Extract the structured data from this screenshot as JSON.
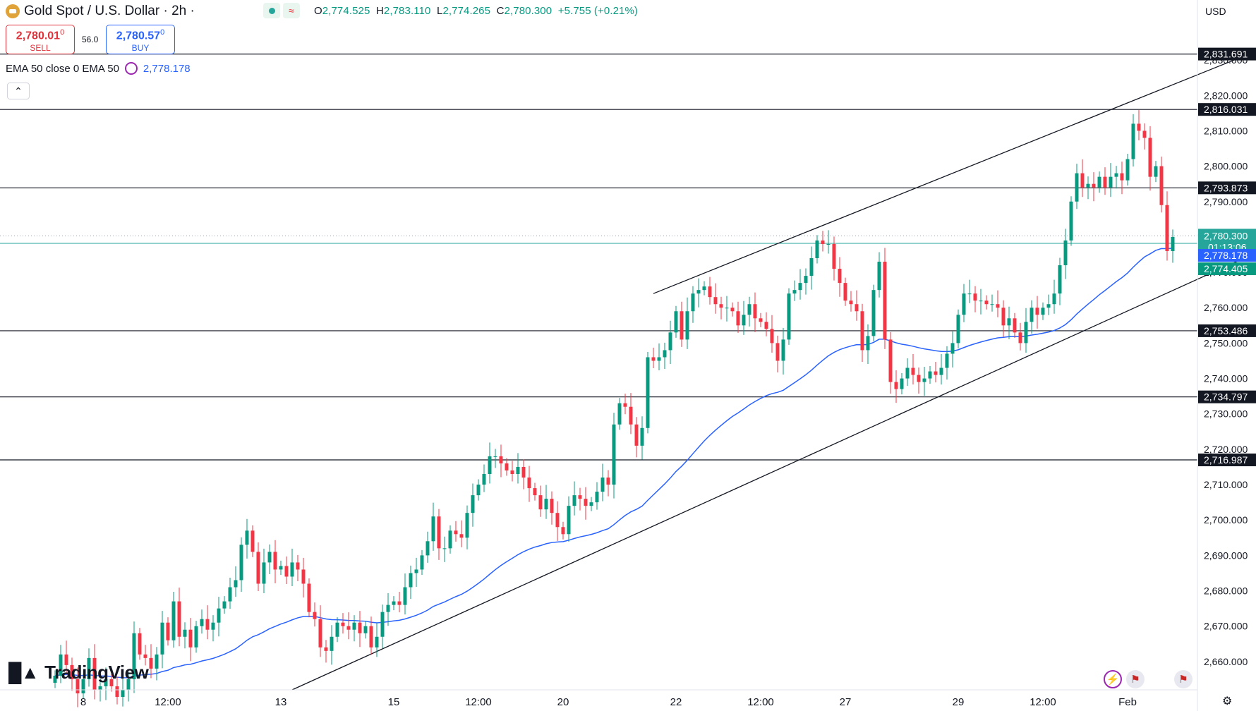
{
  "header": {
    "title": "Gold Spot / U.S. Dollar",
    "sep": "·",
    "interval": "2h",
    "dot": "·",
    "wave_icon": "≈",
    "ohlc": {
      "o_label": "O",
      "o": "2,774.525",
      "h_label": "H",
      "h": "2,783.110",
      "l_label": "L",
      "l": "2,774.265",
      "c_label": "C",
      "c": "2,780.300",
      "change": "+5.755 (+0.21%)"
    }
  },
  "trade": {
    "sell_price": "2,780.01",
    "sell_price_sup": "0",
    "sell_label": "SELL",
    "buy_price": "2,780.57",
    "buy_price_sup": "0",
    "buy_label": "BUY",
    "spread": "56.0"
  },
  "indicator": {
    "label": "EMA 50 close 0 EMA 50",
    "value": "2,778.178"
  },
  "currency": "USD",
  "branding": "TradingView",
  "colors": {
    "up": "#089981",
    "down": "#f23645",
    "ema": "#2962ff",
    "level": "#131722",
    "last": "#26a69a"
  },
  "chart_data": {
    "type": "candlestick",
    "symbol": "Gold Spot / U.S. Dollar",
    "interval": "2h",
    "ylim": [
      2652,
      2836
    ],
    "y_ticks": [
      2660,
      2670,
      2680,
      2690,
      2700,
      2710,
      2720,
      2730,
      2740,
      2750,
      2760,
      2770,
      2780,
      2790,
      2800,
      2810,
      2820,
      2830
    ],
    "y_tick_labels": [
      "2,660.000",
      "2,670.000",
      "2,680.000",
      "2,690.000",
      "2,700.000",
      "2,710.000",
      "2,720.000",
      "2,730.000",
      "2,740.000",
      "2,750.000",
      "2,760.000",
      "2,770.000",
      "2,780.000",
      "2,790.000",
      "2,800.000",
      "2,810.000",
      "2,820.000",
      "2,830.000"
    ],
    "x_ticks": [
      {
        "i": 5,
        "label": "8"
      },
      {
        "i": 20,
        "label": "12:00"
      },
      {
        "i": 40,
        "label": "13"
      },
      {
        "i": 60,
        "label": "15"
      },
      {
        "i": 75,
        "label": "12:00"
      },
      {
        "i": 90,
        "label": "20"
      },
      {
        "i": 110,
        "label": "22"
      },
      {
        "i": 125,
        "label": "12:00"
      },
      {
        "i": 140,
        "label": "27"
      },
      {
        "i": 160,
        "label": "29"
      },
      {
        "i": 175,
        "label": "12:00"
      },
      {
        "i": 190,
        "label": "Feb"
      }
    ],
    "horizontal_levels": [
      2831.691,
      2816.031,
      2793.873,
      2753.486,
      2734.797,
      2716.987
    ],
    "horizontal_level_labels": [
      "2,831.691",
      "2,816.031",
      "2,793.873",
      "2,753.486",
      "2,734.797",
      "2,716.987"
    ],
    "last_price": 2780.3,
    "last_price_label": "2,780.300",
    "countdown": "01:13:06",
    "ema_value": 2778.178,
    "ema_label": "2,778.178",
    "low_marker": 2774.405,
    "low_marker_label": "2,774.405",
    "trendlines": [
      {
        "name": "channel-upper",
        "from": [
          106,
          2764
        ],
        "to": [
          212,
          2832
        ]
      },
      {
        "name": "channel-lower",
        "from": [
          42,
          2652
        ],
        "to": [
          212,
          2775
        ]
      }
    ],
    "closes": [
      2656,
      2662,
      2659,
      2655,
      2651,
      2655,
      2661,
      2652,
      2653,
      2655,
      2653,
      2650,
      2652,
      2655,
      2668,
      2662,
      2661,
      2658,
      2662,
      2671,
      2666,
      2677,
      2667,
      2669,
      2664,
      2670,
      2672,
      2669,
      2671,
      2675,
      2677,
      2681,
      2683,
      2693,
      2697,
      2691,
      2682,
      2688,
      2691,
      2686,
      2687,
      2684,
      2688,
      2686,
      2682,
      2674,
      2672,
      2664,
      2663,
      2667,
      2671,
      2670,
      2669,
      2671,
      2668,
      2670,
      2664,
      2667,
      2674,
      2676,
      2677,
      2676,
      2681,
      2685,
      2686,
      2690,
      2694,
      2701,
      2692,
      2692,
      2697,
      2696,
      2695,
      2702,
      2707,
      2710,
      2713,
      2718,
      2718,
      2716,
      2714,
      2713,
      2715,
      2712,
      2709,
      2707,
      2703,
      2706,
      2702,
      2698,
      2696,
      2704,
      2707,
      2706,
      2704,
      2705,
      2708,
      2712,
      2710,
      2727,
      2733,
      2732,
      2727,
      2721,
      2726,
      2746,
      2745,
      2746,
      2748,
      2753,
      2759,
      2751,
      2759,
      2764,
      2765,
      2766,
      2763,
      2761,
      2760,
      2760,
      2759,
      2755,
      2758,
      2761,
      2757,
      2756,
      2754,
      2750,
      2745,
      2751,
      2764,
      2765,
      2767,
      2769,
      2774,
      2779,
      2778,
      2778,
      2771,
      2767,
      2762,
      2761,
      2759,
      2748,
      2752,
      2765,
      2773,
      2751,
      2739,
      2737,
      2740,
      2743,
      2741,
      2739,
      2740,
      2742,
      2741,
      2743,
      2747,
      2750,
      2758,
      2764,
      2764,
      2762,
      2762,
      2761,
      2761,
      2760,
      2755,
      2757,
      2753,
      2750,
      2756,
      2760,
      2758,
      2760,
      2761,
      2764,
      2772,
      2779,
      2790,
      2798,
      2794,
      2795,
      2794,
      2797,
      2794,
      2797,
      2798,
      2796,
      2802,
      2812,
      2810,
      2808,
      2797,
      2800,
      2789,
      2776,
      2780
    ]
  }
}
